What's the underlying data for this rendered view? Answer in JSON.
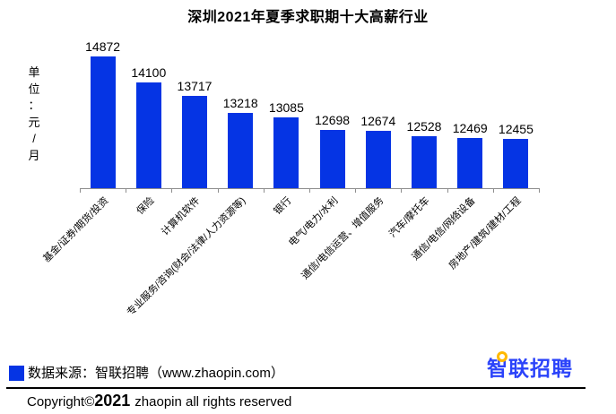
{
  "title": "深圳2021年夏季求职期十大高薪行业",
  "y_axis_label": "单位：元/月",
  "chart_data": {
    "type": "bar",
    "title": "深圳2021年夏季求职期十大高薪行业",
    "ylabel": "单位：元/月",
    "xlabel": "",
    "categories": [
      "基金/证券/期货/投资",
      "保险",
      "计算机软件",
      "专业服务/咨询(财会/法律/人力资源等)",
      "银行",
      "电气/电力/水利",
      "通信/电信运营、增值服务",
      "汽车/摩托车",
      "通信/电信/网络设备",
      "房地产/建筑/建材/工程"
    ],
    "values": [
      14872,
      14100,
      13717,
      13218,
      13085,
      12698,
      12674,
      12528,
      12469,
      12455
    ],
    "value_labels_shown": true,
    "bar_color": "#0534E4",
    "axis_color": "#8e8e8e",
    "ylim": [
      11000,
      15000
    ],
    "grid": false,
    "legend_position": "none",
    "category_label_rotation_deg": 45
  },
  "footer": {
    "legend_swatch_color": "#0534E4",
    "source_text": "数据来源：智联招聘（www.zhaopin.com）",
    "copyright_prefix": "Copyright©",
    "copyright_year": "2021",
    "copyright_suffix": "zhaopin all rights reserved",
    "logo_text": "智联招聘",
    "logo_color": "#2B43FA",
    "logo_dot_color": "#FFB900"
  }
}
